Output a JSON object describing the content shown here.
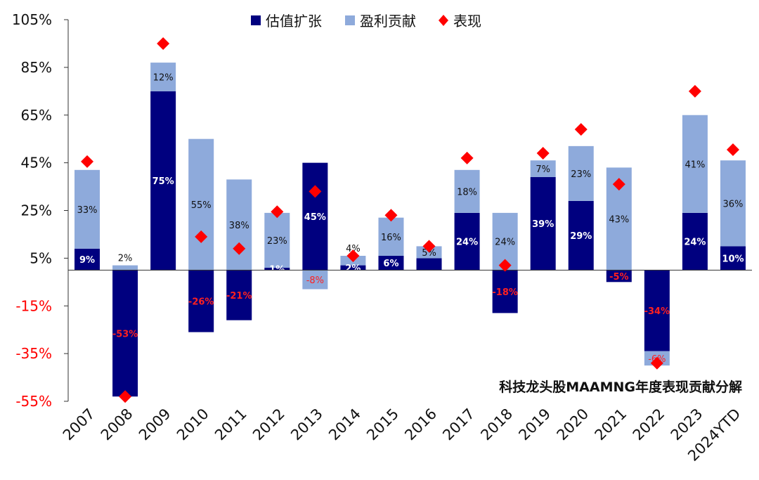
{
  "chart_data": {
    "type": "bar",
    "stacked": true,
    "title": "科技龙头股MAAMNG年度表现贡献分解",
    "categories": [
      "2007",
      "2008",
      "2009",
      "2010",
      "2011",
      "2012",
      "2013",
      "2014",
      "2015",
      "2016",
      "2017",
      "2018",
      "2019",
      "2020",
      "2021",
      "2022",
      "2023",
      "2024YTD"
    ],
    "series": [
      {
        "name": "估值扩张",
        "color": "#00007f",
        "kind": "bar",
        "values": [
          9,
          -53,
          75,
          -26,
          -21,
          1,
          45,
          2,
          6,
          5,
          24,
          -18,
          39,
          29,
          -5,
          -34,
          24,
          10
        ],
        "labels": [
          "9%",
          "-53%",
          "75%",
          "-26%",
          "-21%",
          "1%",
          "45%",
          "2%",
          "6%",
          "",
          "24%",
          "-18%",
          "39%",
          "29%",
          "-5%",
          "-34%",
          "24%",
          "10%"
        ]
      },
      {
        "name": "盈利贡献",
        "color": "#8eaadb",
        "kind": "bar",
        "values": [
          33,
          2,
          12,
          55,
          38,
          23,
          -8,
          4,
          16,
          5,
          18,
          24,
          7,
          23,
          43,
          -6,
          41,
          36
        ],
        "labels": [
          "33%",
          "2%",
          "12%",
          "55%",
          "38%",
          "23%",
          "-8%",
          "4%",
          "16%",
          "5%",
          "18%",
          "24%",
          "7%",
          "23%",
          "43%",
          "-6%",
          "41%",
          "36%"
        ]
      },
      {
        "name": "表现",
        "color": "#ff0000",
        "kind": "marker",
        "values": [
          45.5,
          -53,
          95,
          14,
          9,
          24.5,
          33,
          6,
          23,
          10,
          47,
          2,
          49,
          59,
          36,
          -39,
          75,
          50.5
        ]
      }
    ],
    "yticks": [
      "105%",
      "85%",
      "65%",
      "45%",
      "25%",
      "5%",
      "-15%",
      "-35%",
      "-55%"
    ],
    "ylim": [
      -55,
      105
    ],
    "legend": "top"
  }
}
